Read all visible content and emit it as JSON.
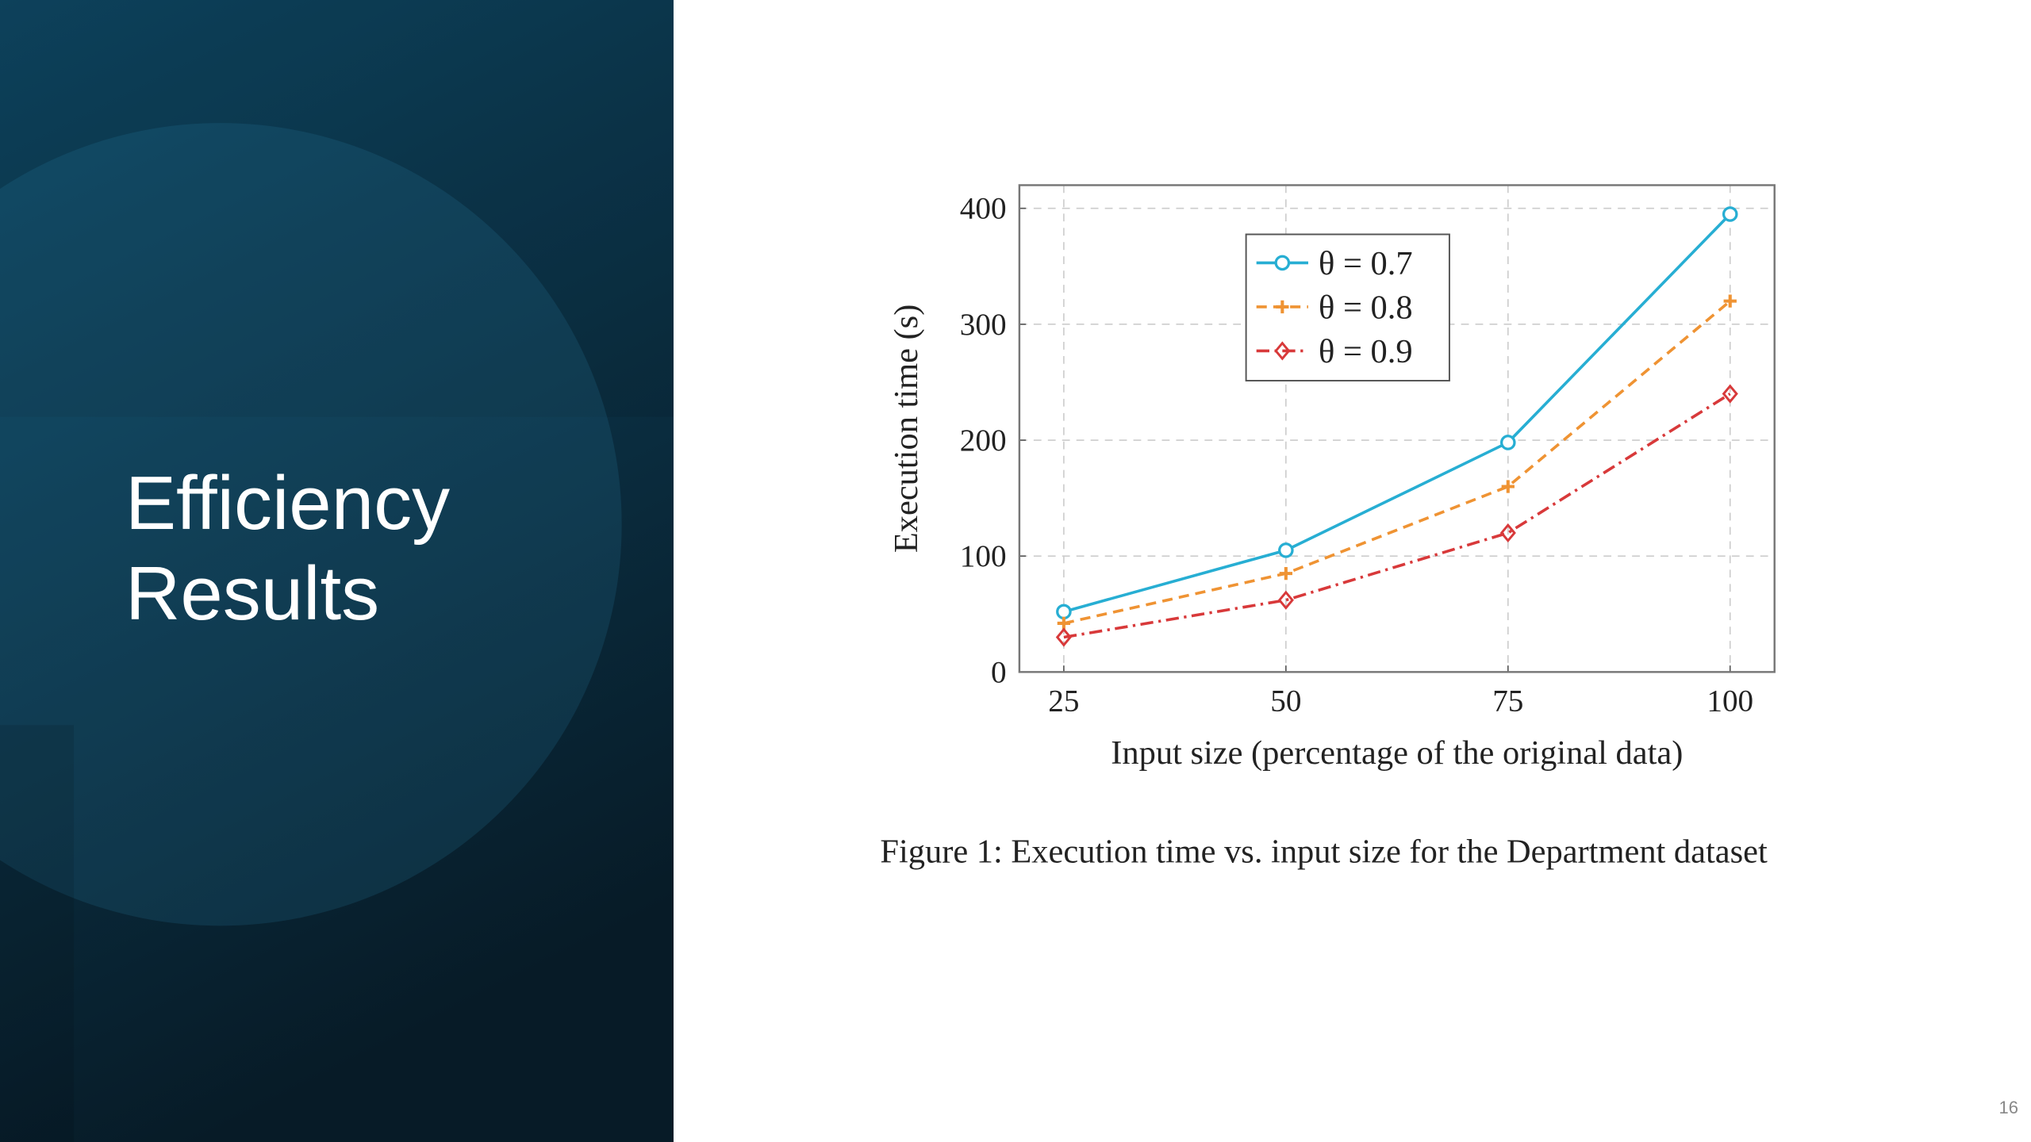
{
  "slide": {
    "title": "Efficiency Results",
    "page_number": "16"
  },
  "chart_data": {
    "type": "line",
    "caption": "Figure 1: Execution time vs. input size for the Department dataset",
    "xlabel": "Input size (percentage of the original data)",
    "ylabel": "Execution time (s)",
    "x": [
      25,
      50,
      75,
      100
    ],
    "series": [
      {
        "name": "θ = 0.7",
        "color": "#27aed3",
        "values": [
          52,
          105,
          198,
          395
        ]
      },
      {
        "name": "θ = 0.8",
        "color": "#ef9333",
        "values": [
          42,
          85,
          160,
          320
        ]
      },
      {
        "name": "θ = 0.9",
        "color": "#d8393a",
        "values": [
          30,
          62,
          120,
          240
        ]
      }
    ],
    "xlim": [
      20,
      105
    ],
    "xticks": [
      25,
      50,
      75,
      100
    ],
    "ylim": [
      0,
      420
    ],
    "yticks": [
      0,
      100,
      200,
      300,
      400
    ],
    "grid": true,
    "legend": "top-center"
  }
}
